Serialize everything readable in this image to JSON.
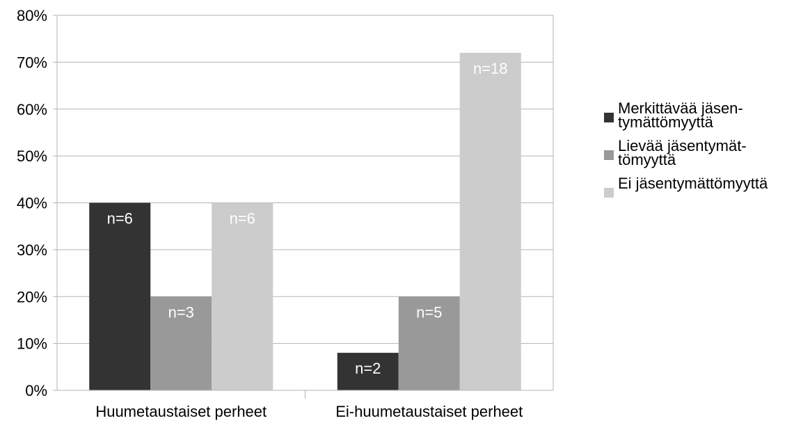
{
  "chart_data": {
    "type": "bar",
    "categories": [
      "Huumetaustaiset perheet",
      "Ei-huumetaustaiset perheet"
    ],
    "series": [
      {
        "name": "Merkittävää jäsen-\ntymättömyyttä",
        "values": [
          40,
          8
        ],
        "labels": [
          "n=6",
          "n=2"
        ],
        "color": "#333333"
      },
      {
        "name": "Lievää jäsentymät-\ntömyyttä",
        "values": [
          20,
          20
        ],
        "labels": [
          "n=3",
          "n=5"
        ],
        "color": "#999999"
      },
      {
        "name": "Ei jäsentymättömyyttä",
        "values": [
          40,
          72
        ],
        "labels": [
          "n=6",
          "n=18"
        ],
        "color": "#cccccc"
      }
    ],
    "ylim": [
      0,
      80
    ],
    "yticks": [
      "0%",
      "10%",
      "20%",
      "30%",
      "40%",
      "50%",
      "60%",
      "70%",
      "80%"
    ],
    "grid": true,
    "legend": "right"
  }
}
